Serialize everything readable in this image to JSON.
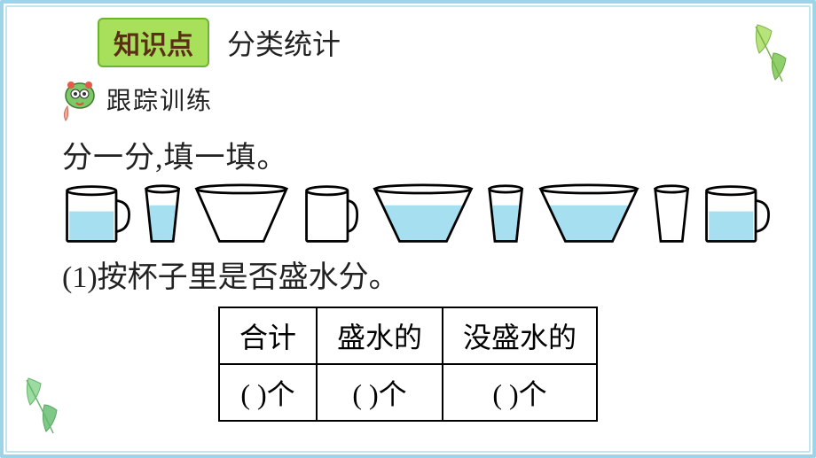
{
  "frame": {
    "border_outer": "#9ed4e8",
    "border_inner": "#c2e5f0"
  },
  "badge": {
    "text": "知识点",
    "bg": "#a8e05c",
    "border": "#6bb52e",
    "text_color": "#5a2f16"
  },
  "title": "分类统计",
  "subtitle": "跟踪训练",
  "instruction": "分一分,填一填。",
  "cups": {
    "water_color": "#a6dff0",
    "stroke": "#000000",
    "items": [
      {
        "type": "mug",
        "water": true,
        "width": 86
      },
      {
        "type": "small",
        "water": true,
        "width": 48
      },
      {
        "type": "bowl",
        "water": false,
        "width": 120
      },
      {
        "type": "mug",
        "water": false,
        "width": 72
      },
      {
        "type": "bowl",
        "water": true,
        "width": 128
      },
      {
        "type": "small",
        "water": true,
        "width": 48
      },
      {
        "type": "bowl",
        "water": true,
        "width": 128
      },
      {
        "type": "small",
        "water": false,
        "width": 48
      },
      {
        "type": "mug",
        "water": true,
        "width": 86
      }
    ]
  },
  "question": "(1)按杯子里是否盛水分。",
  "table": {
    "headers": [
      "合计",
      "盛水的",
      "没盛水的"
    ],
    "row_template": "(    )个"
  }
}
